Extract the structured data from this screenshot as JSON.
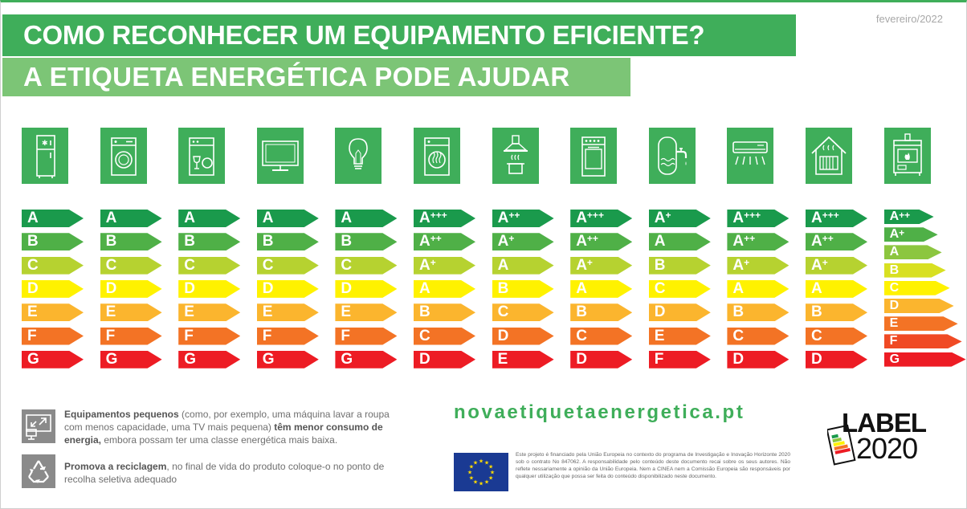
{
  "header": {
    "date": "fevereiro/2022",
    "title_line1": "COMO RECONHECER UM EQUIPAMENTO EFICIENTE?",
    "title_line2": "A ETIQUETA ENERGÉTICA PODE AJUDAR"
  },
  "colors": {
    "green_dark": "#3fae5a",
    "green_light": "#7cc576",
    "grey": "#8a8a8a"
  },
  "appliances": [
    {
      "icon": "refrigerator-icon",
      "classes": [
        {
          "base": "A",
          "plus": ""
        },
        {
          "base": "B",
          "plus": ""
        },
        {
          "base": "C",
          "plus": ""
        },
        {
          "base": "D",
          "plus": ""
        },
        {
          "base": "E",
          "plus": ""
        },
        {
          "base": "F",
          "plus": ""
        },
        {
          "base": "G",
          "plus": ""
        }
      ]
    },
    {
      "icon": "washing-machine-icon",
      "classes": [
        {
          "base": "A",
          "plus": ""
        },
        {
          "base": "B",
          "plus": ""
        },
        {
          "base": "C",
          "plus": ""
        },
        {
          "base": "D",
          "plus": ""
        },
        {
          "base": "E",
          "plus": ""
        },
        {
          "base": "F",
          "plus": ""
        },
        {
          "base": "G",
          "plus": ""
        }
      ]
    },
    {
      "icon": "dishwasher-icon",
      "classes": [
        {
          "base": "A",
          "plus": ""
        },
        {
          "base": "B",
          "plus": ""
        },
        {
          "base": "C",
          "plus": ""
        },
        {
          "base": "D",
          "plus": ""
        },
        {
          "base": "E",
          "plus": ""
        },
        {
          "base": "F",
          "plus": ""
        },
        {
          "base": "G",
          "plus": ""
        }
      ]
    },
    {
      "icon": "television-icon",
      "classes": [
        {
          "base": "A",
          "plus": ""
        },
        {
          "base": "B",
          "plus": ""
        },
        {
          "base": "C",
          "plus": ""
        },
        {
          "base": "D",
          "plus": ""
        },
        {
          "base": "E",
          "plus": ""
        },
        {
          "base": "F",
          "plus": ""
        },
        {
          "base": "G",
          "plus": ""
        }
      ]
    },
    {
      "icon": "light-bulb-icon",
      "classes": [
        {
          "base": "A",
          "plus": ""
        },
        {
          "base": "B",
          "plus": ""
        },
        {
          "base": "C",
          "plus": ""
        },
        {
          "base": "D",
          "plus": ""
        },
        {
          "base": "E",
          "plus": ""
        },
        {
          "base": "F",
          "plus": ""
        },
        {
          "base": "G",
          "plus": ""
        }
      ]
    },
    {
      "icon": "tumble-dryer-icon",
      "classes": [
        {
          "base": "A",
          "plus": "+++"
        },
        {
          "base": "A",
          "plus": "++"
        },
        {
          "base": "A",
          "plus": "+"
        },
        {
          "base": "A",
          "plus": ""
        },
        {
          "base": "B",
          "plus": ""
        },
        {
          "base": "C",
          "plus": ""
        },
        {
          "base": "D",
          "plus": ""
        }
      ]
    },
    {
      "icon": "range-hood-icon",
      "classes": [
        {
          "base": "A",
          "plus": "++"
        },
        {
          "base": "A",
          "plus": "+"
        },
        {
          "base": "A",
          "plus": ""
        },
        {
          "base": "B",
          "plus": ""
        },
        {
          "base": "C",
          "plus": ""
        },
        {
          "base": "D",
          "plus": ""
        },
        {
          "base": "E",
          "plus": ""
        }
      ]
    },
    {
      "icon": "oven-icon",
      "classes": [
        {
          "base": "A",
          "plus": "+++"
        },
        {
          "base": "A",
          "plus": "++"
        },
        {
          "base": "A",
          "plus": "+"
        },
        {
          "base": "A",
          "plus": ""
        },
        {
          "base": "B",
          "plus": ""
        },
        {
          "base": "C",
          "plus": ""
        },
        {
          "base": "D",
          "plus": ""
        }
      ]
    },
    {
      "icon": "water-heater-icon",
      "classes": [
        {
          "base": "A",
          "plus": "+"
        },
        {
          "base": "A",
          "plus": ""
        },
        {
          "base": "B",
          "plus": ""
        },
        {
          "base": "C",
          "plus": ""
        },
        {
          "base": "D",
          "plus": ""
        },
        {
          "base": "E",
          "plus": ""
        },
        {
          "base": "F",
          "plus": ""
        }
      ]
    },
    {
      "icon": "air-conditioner-icon",
      "classes": [
        {
          "base": "A",
          "plus": "+++"
        },
        {
          "base": "A",
          "plus": "++"
        },
        {
          "base": "A",
          "plus": "+"
        },
        {
          "base": "A",
          "plus": ""
        },
        {
          "base": "B",
          "plus": ""
        },
        {
          "base": "C",
          "plus": ""
        },
        {
          "base": "D",
          "plus": ""
        }
      ]
    },
    {
      "icon": "house-heating-icon",
      "classes": [
        {
          "base": "A",
          "plus": "+++"
        },
        {
          "base": "A",
          "plus": "++"
        },
        {
          "base": "A",
          "plus": "+"
        },
        {
          "base": "A",
          "plus": ""
        },
        {
          "base": "B",
          "plus": ""
        },
        {
          "base": "C",
          "plus": ""
        },
        {
          "base": "D",
          "plus": ""
        }
      ]
    },
    {
      "icon": "stove-icon",
      "classes": [
        {
          "base": "A",
          "plus": "++"
        },
        {
          "base": "A",
          "plus": "+"
        },
        {
          "base": "A",
          "plus": ""
        },
        {
          "base": "B",
          "plus": ""
        },
        {
          "base": "C",
          "plus": ""
        },
        {
          "base": "D",
          "plus": ""
        },
        {
          "base": "E",
          "plus": ""
        },
        {
          "base": "F",
          "plus": ""
        },
        {
          "base": "G",
          "plus": ""
        }
      ]
    }
  ],
  "scale_colors": [
    "#1a9a4c",
    "#4fb047",
    "#b6d230",
    "#fff200",
    "#fbb52e",
    "#f37325",
    "#ed1c24"
  ],
  "scale_colors_9": [
    "#1a9a4c",
    "#4fb047",
    "#8cc63f",
    "#d8e021",
    "#fff200",
    "#fbb52e",
    "#f37325",
    "#f04a24",
    "#ed1c24"
  ],
  "info": {
    "small_bold": "Equipamentos pequenos",
    "small_rest1": " (como, por exemplo, uma máquina lavar a roupa com menos capacidade, uma TV mais pequena) ",
    "small_bold2": "têm menor consumo de energia,",
    "small_rest2": " embora possam ter uma classe energética mais baixa.",
    "small_icon": "small-devices-icon",
    "recycle_bold": "Promova a reciclagem",
    "recycle_rest": ", no final de vida do produto coloque-o no ponto de recolha seletiva adequado",
    "recycle_icon": "recycle-icon"
  },
  "footer": {
    "website": "novaetiquetaenergetica.pt",
    "disclaimer": "Este projeto é financiado pela União Europeia no contexto do programa de Investigação e Inovação Horizonte 2020 sob o contrato No 847062. A responsabilidade pelo conteúdo deste documento recai sobre os seus autores. Não reflete nessariamente a opinião da União Europeia. Nem a CINEA nem a Comissão Europeia são responsáveis por qualquer utilização que possa ser feita do conteúdo disponibilizado neste documento.",
    "logo_word": "LABEL",
    "logo_year": "2020"
  }
}
